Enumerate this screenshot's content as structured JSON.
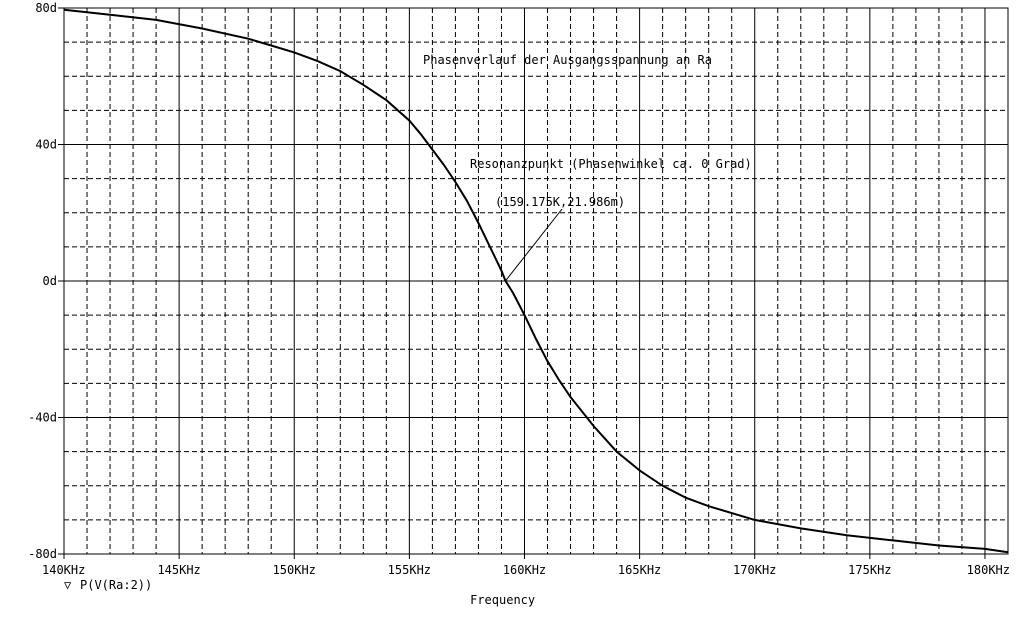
{
  "chart_data": {
    "type": "line",
    "title": "",
    "xlabel": "Frequency",
    "ylabel": "",
    "xlim": [
      140,
      181
    ],
    "ylim": [
      -80,
      80
    ],
    "x_unit": "KHz",
    "y_unit": "d",
    "x_ticks": [
      140,
      145,
      150,
      155,
      160,
      165,
      170,
      175,
      180
    ],
    "x_tick_labels": [
      "140KHz",
      "145KHz",
      "150KHz",
      "155KHz",
      "160KHz",
      "165KHz",
      "170KHz",
      "175KHz",
      "180KHz"
    ],
    "y_ticks": [
      80,
      40,
      0,
      -40,
      -80
    ],
    "y_tick_labels": [
      "80d",
      "40d",
      "0d",
      "-40d",
      "-80d"
    ],
    "grid": true,
    "series": [
      {
        "name": "P(V(Ra:2))",
        "color": "#000000",
        "marker_symbol": "▽",
        "x": [
          140,
          142,
          144,
          146,
          148,
          149,
          150,
          151,
          152,
          153,
          154,
          155,
          155.5,
          156,
          156.5,
          157,
          157.5,
          158,
          158.5,
          159,
          159.175,
          159.5,
          160,
          160.5,
          161,
          161.5,
          162,
          163,
          164,
          165,
          166,
          167,
          168,
          170,
          172,
          174,
          176,
          178,
          180,
          181
        ],
        "y": [
          79.5,
          78,
          76.5,
          74,
          71,
          69,
          67,
          64.5,
          61.5,
          57.5,
          53,
          47,
          43,
          38.5,
          34,
          29,
          23.5,
          17,
          10,
          3,
          0.022,
          -3.5,
          -10,
          -17,
          -23.5,
          -29,
          -34,
          -42.5,
          -50,
          -55.5,
          -60,
          -63.5,
          -66,
          -70,
          -72.5,
          -74.5,
          -76,
          -77.5,
          -78.5,
          -79.5
        ]
      }
    ],
    "annotations": [
      {
        "text": "Phasenverlauf der Ausgangsspannung an Ra"
      },
      {
        "text": "Resonanzpunkt (Phasenwinkel ca. 0 Grad)"
      },
      {
        "text": "(159.175K,21.986m)",
        "x": 159.175,
        "y": 0.022
      }
    ],
    "legend": [
      {
        "symbol": "▽",
        "label": "P(V(Ra:2))"
      }
    ]
  }
}
